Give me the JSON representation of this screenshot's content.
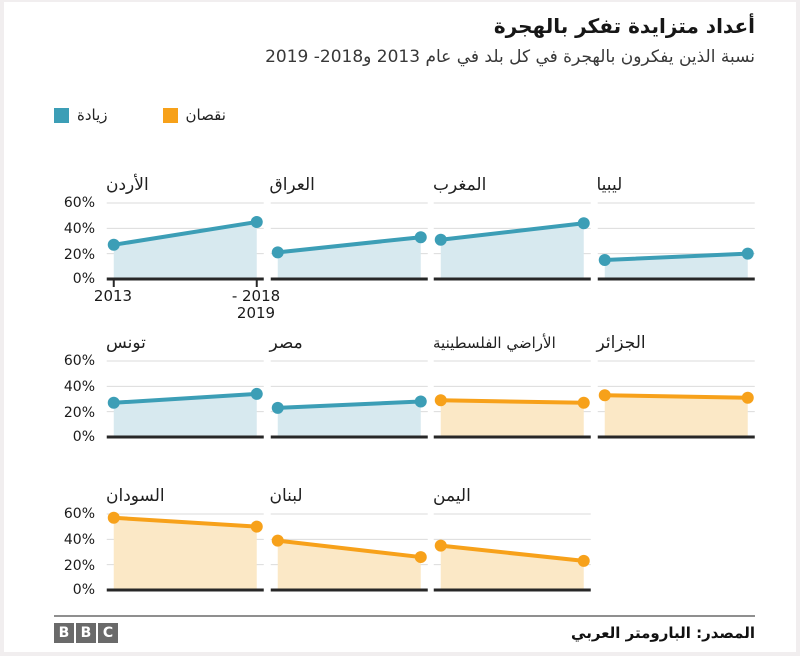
{
  "header": {
    "title": "أعداد متزايدة تفكر بالهجرة",
    "subtitle": "نسبة الذين يفكرون بالهجرة في كل بلد في عام 2013 و2018- 2019"
  },
  "legend": {
    "increase_label": "زيادة",
    "decrease_label": "نقصان"
  },
  "colors": {
    "increase_line": "#3c9eb6",
    "increase_fill": "#d7e9ef",
    "decrease_line": "#f7a11a",
    "decrease_fill": "#fbe8c6",
    "gridline": "#dbdbdb",
    "baseline": "#272727"
  },
  "chart_data": {
    "type": "line",
    "title": "أعداد متزايدة تفكر بالهجرة",
    "subtitle": "نسبة الذين يفكرون بالهجرة في كل بلد في عام 2013 و2018- 2019",
    "x": [
      "2013",
      "2018-2019"
    ],
    "ylim": [
      0,
      60
    ],
    "y_ticks": [
      "60%",
      "40%",
      "20%",
      "0%"
    ],
    "x_tick_labels": {
      "left": "2013",
      "right_line1": "- 2018",
      "right_line2": "2019"
    },
    "grid": true,
    "legend_position": "top-left",
    "series": [
      {
        "name": "الأردن",
        "values": [
          27,
          45
        ],
        "trend": "increase"
      },
      {
        "name": "العراق",
        "values": [
          21,
          33
        ],
        "trend": "increase"
      },
      {
        "name": "المغرب",
        "values": [
          31,
          44
        ],
        "trend": "increase"
      },
      {
        "name": "ليبيا",
        "values": [
          15,
          20
        ],
        "trend": "increase"
      },
      {
        "name": "تونس",
        "values": [
          27,
          34
        ],
        "trend": "increase"
      },
      {
        "name": "مصر",
        "values": [
          23,
          28
        ],
        "trend": "increase"
      },
      {
        "name": "الأراضي الفلسطينية",
        "values": [
          29,
          27
        ],
        "trend": "decrease"
      },
      {
        "name": "الجزائر",
        "values": [
          33,
          31
        ],
        "trend": "decrease"
      },
      {
        "name": "السودان",
        "values": [
          57,
          50
        ],
        "trend": "decrease"
      },
      {
        "name": "لبنان",
        "values": [
          39,
          26
        ],
        "trend": "decrease"
      },
      {
        "name": "اليمن",
        "values": [
          35,
          23
        ],
        "trend": "decrease"
      }
    ],
    "rows": [
      [
        0,
        1,
        2,
        3
      ],
      [
        4,
        5,
        6,
        7
      ],
      [
        8,
        9,
        10
      ]
    ]
  },
  "footer": {
    "logo_letters": [
      "B",
      "B",
      "C"
    ],
    "source": "المصدر: البارومتر العربي"
  }
}
